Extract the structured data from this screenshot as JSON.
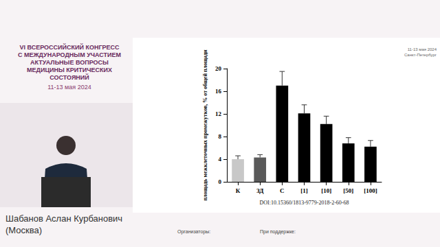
{
  "event": {
    "title_lines": [
      "VI ВСЕРОССИЙСКИЙ КОНГРЕСС",
      "С МЕЖДУНАРОДНЫМ УЧАСТИЕМ",
      "АКТУАЛЬНЫЕ ВОПРОСЫ",
      "МЕДИЦИНЫ КРИТИЧЕСКИХ",
      "СОСТОЯНИЙ"
    ],
    "dates": "11-13 мая 2024",
    "city": "Санкт-Петербург"
  },
  "speaker": {
    "name": "Шабанов Аслан Курбанович",
    "city": "(Москва)"
  },
  "footer": {
    "organizers": "Организаторы:",
    "support": "При поддержке:"
  },
  "chart_data": {
    "type": "bar",
    "y_label": "площадь межклеточных промежутков, % от общей площади",
    "categories": [
      "К",
      "ЗД",
      "С",
      "[1]",
      "[10]",
      "[50]",
      "[100]"
    ],
    "values": [
      4.0,
      4.3,
      17.0,
      12.1,
      10.2,
      6.8,
      6.2
    ],
    "errors": [
      0.6,
      0.5,
      2.5,
      1.5,
      1.4,
      1.0,
      1.1
    ],
    "colors": [
      "#c8c8c8",
      "#5a5a5a",
      "#000000",
      "#000000",
      "#000000",
      "#000000",
      "#000000"
    ],
    "ylim": [
      0,
      20
    ],
    "yticks": [
      0,
      4,
      8,
      12,
      16,
      20
    ],
    "grid": false,
    "footnote": "DOI:10.15360/1813-9779-2018-2-60-68"
  }
}
